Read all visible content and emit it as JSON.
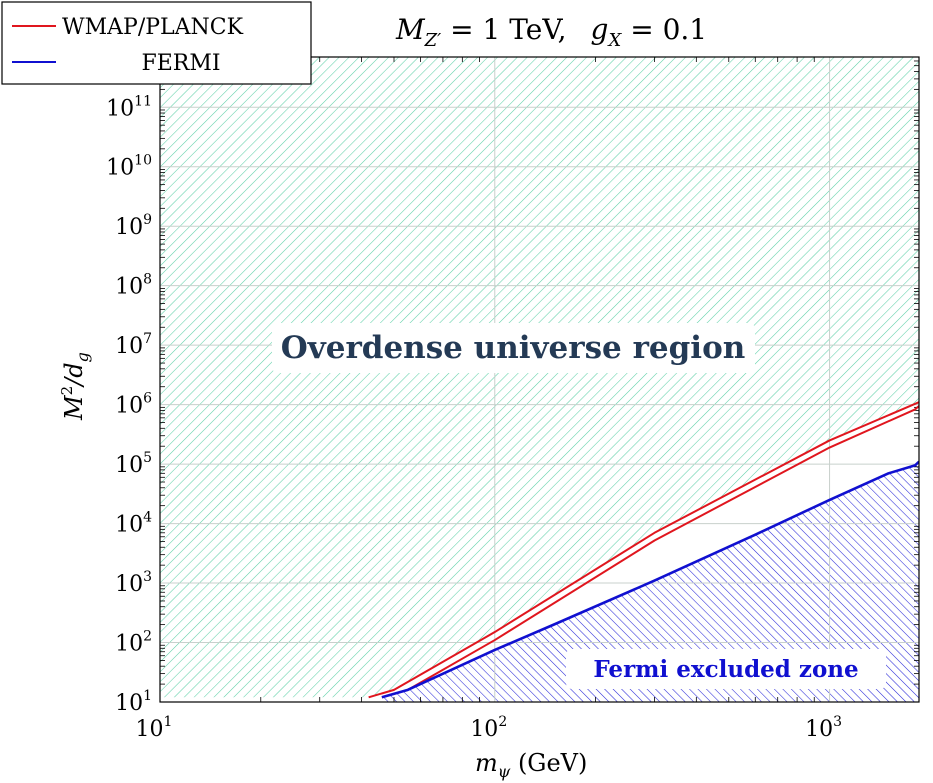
{
  "chart_data": {
    "type": "line",
    "title_parts": {
      "m": "M",
      "sub": "Z′",
      "eq1": " = 1 TeV,",
      "g": "g",
      "gsub": "X",
      "eq2": " = 0.1"
    },
    "xlabel": {
      "sym": "m",
      "sub": "ψ",
      "unit": " (GeV)"
    },
    "ylabel": {
      "base": "M",
      "sup": "2",
      "mid": "/d",
      "sub": "g"
    },
    "xscale": "log",
    "yscale": "log",
    "xlim": [
      10,
      1850
    ],
    "ylim": [
      10,
      700000000000
    ],
    "x_ticks": [
      {
        "value": 10,
        "base": "10",
        "exp": "1"
      },
      {
        "value": 100,
        "base": "10",
        "exp": "2"
      },
      {
        "value": 1000,
        "base": "10",
        "exp": "3"
      }
    ],
    "y_ticks": [
      {
        "value": 10,
        "base": "10",
        "exp": "1"
      },
      {
        "value": 100,
        "base": "10",
        "exp": "2"
      },
      {
        "value": 1000,
        "base": "10",
        "exp": "3"
      },
      {
        "value": 10000,
        "base": "10",
        "exp": "4"
      },
      {
        "value": 100000,
        "base": "10",
        "exp": "5"
      },
      {
        "value": 1000000,
        "base": "10",
        "exp": "6"
      },
      {
        "value": 10000000,
        "base": "10",
        "exp": "7"
      },
      {
        "value": 100000000,
        "base": "10",
        "exp": "8"
      },
      {
        "value": 1000000000,
        "base": "10",
        "exp": "9"
      },
      {
        "value": 10000000000,
        "base": "10",
        "exp": "10"
      },
      {
        "value": 100000000000,
        "base": "10",
        "exp": "11"
      }
    ],
    "grid": true,
    "legend_position": "top-left",
    "legend": [
      {
        "label": "WMAP/PLANCK",
        "color": "#e0161e"
      },
      {
        "label": "FERMI",
        "color": "#1010d0"
      }
    ],
    "series": [
      {
        "name": "WMAP/PLANCK upper",
        "color": "#e0161e",
        "points": [
          [
            42,
            12
          ],
          [
            50,
            16
          ],
          [
            100,
            150
          ],
          [
            300,
            7000
          ],
          [
            1000,
            250000
          ],
          [
            1850,
            1100000
          ]
        ]
      },
      {
        "name": "WMAP/PLANCK lower",
        "color": "#e0161e",
        "points": [
          [
            46,
            12
          ],
          [
            55,
            16
          ],
          [
            100,
            110
          ],
          [
            300,
            5200
          ],
          [
            1000,
            190000
          ],
          [
            1800,
            830000
          ],
          [
            1850,
            950000
          ]
        ]
      },
      {
        "name": "FERMI",
        "color": "#1010d0",
        "points": [
          [
            46,
            12
          ],
          [
            55,
            16
          ],
          [
            100,
            75
          ],
          [
            150,
            200
          ],
          [
            300,
            1100
          ],
          [
            600,
            6500
          ],
          [
            1000,
            25000
          ],
          [
            1500,
            70000
          ],
          [
            1800,
            95000
          ],
          [
            1850,
            110000
          ]
        ]
      }
    ],
    "annotations": {
      "overdense": "Overdense universe region",
      "fermi": "Fermi excluded zone"
    },
    "colors": {
      "overdense_hatch": "#5fd0a8",
      "fermi_hatch": "#2a2ad8",
      "grid": "#c8d0cc",
      "overdense_text": "#243a55",
      "fermi_text": "#1010d0"
    }
  }
}
